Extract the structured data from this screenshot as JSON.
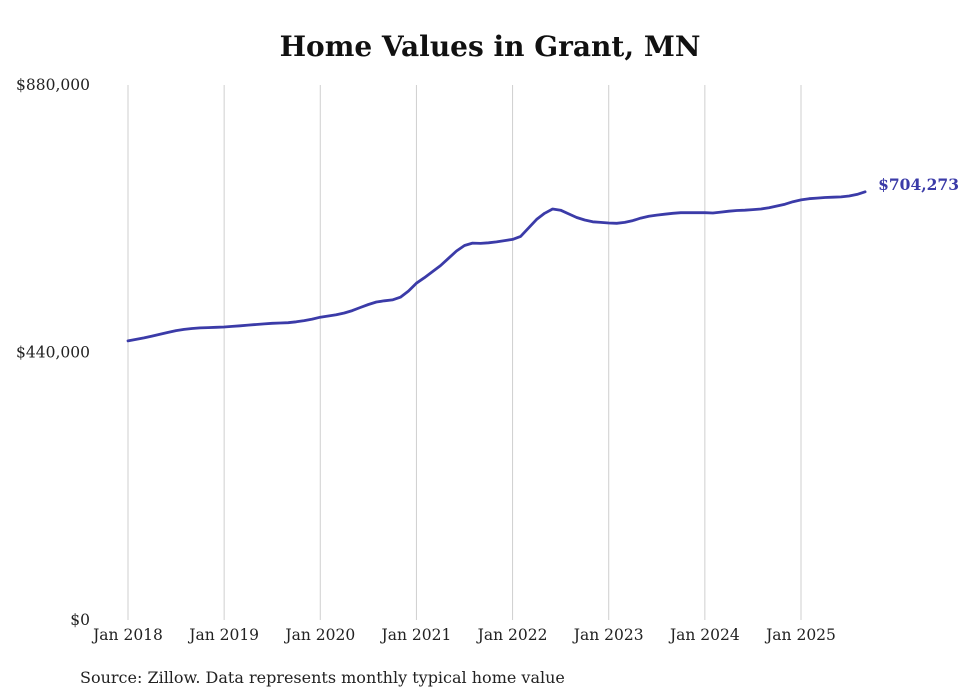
{
  "chart_data": {
    "type": "line",
    "title": "Home Values in Grant, MN",
    "source_note": "Source: Zillow. Data represents monthly typical home value",
    "end_label": "$704,273",
    "end_value": 704273,
    "line_color": "#3b3ba8",
    "grid_color": "#cfcfcf",
    "ylim": [
      0,
      880000
    ],
    "y_ticks": [
      {
        "value": 0,
        "label": "$0"
      },
      {
        "value": 440000,
        "label": "$440,000"
      },
      {
        "value": 880000,
        "label": "$880,000"
      }
    ],
    "x_tick_labels": [
      "Jan 2018",
      "Jan 2019",
      "Jan 2020",
      "Jan 2021",
      "Jan 2022",
      "Jan 2023",
      "Jan 2024",
      "Jan 2025"
    ],
    "x_start": "2018-01",
    "x_end": "2025-09",
    "legend": "none",
    "grid": "vertical-only",
    "values": [
      459000,
      461500,
      464000,
      467000,
      470000,
      473000,
      476000,
      478000,
      479500,
      480500,
      481000,
      481500,
      482000,
      483000,
      484000,
      485000,
      486000,
      487000,
      488000,
      488500,
      489000,
      490500,
      492500,
      495000,
      498000,
      500000,
      502000,
      505000,
      509000,
      514000,
      519000,
      523000,
      525000,
      526500,
      531000,
      541000,
      554000,
      563000,
      573000,
      583000,
      595000,
      607000,
      616000,
      620000,
      619500,
      620500,
      622000,
      624000,
      626000,
      631000,
      645000,
      659000,
      669000,
      676000,
      674000,
      668000,
      662000,
      658000,
      655000,
      654000,
      653000,
      652500,
      654000,
      657000,
      661000,
      664000,
      666000,
      667500,
      669000,
      670000,
      670000,
      670000,
      670000,
      669500,
      671000,
      672500,
      673500,
      674000,
      675000,
      676000,
      678000,
      681000,
      684000,
      688000,
      691000,
      693000,
      694000,
      695000,
      695500,
      696000,
      697500,
      700000,
      704273
    ]
  }
}
